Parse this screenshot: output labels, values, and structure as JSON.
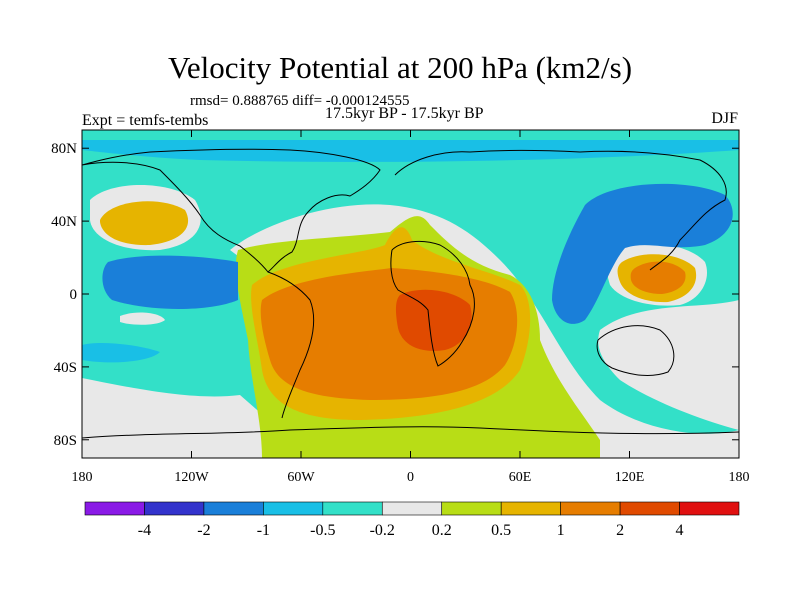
{
  "chart_data": {
    "type": "heatmap",
    "title": "Velocity Potential at 200 hPa (km2/s)",
    "stats_line": "rmsd= 0.888765 diff= -0.000124555",
    "subtitle": "17.5kyr BP - 17.5kyr BP",
    "left_label": "Expt = temfs-tembs",
    "right_label": "DJF",
    "x_axis": {
      "range": [
        -180,
        180
      ],
      "ticks": [
        -180,
        -120,
        -60,
        0,
        60,
        120,
        180
      ],
      "tick_labels": [
        "180",
        "120W",
        "60W",
        "0",
        "60E",
        "120E",
        "180"
      ]
    },
    "y_axis": {
      "range": [
        -90,
        90
      ],
      "ticks": [
        80,
        40,
        0,
        -40,
        -80
      ],
      "tick_labels": [
        "80N",
        "40N",
        "0",
        "40S",
        "80S"
      ]
    },
    "colorbar": {
      "levels": [
        -4,
        -2,
        -1,
        -0.5,
        -0.2,
        0.2,
        0.5,
        1,
        2,
        4
      ],
      "level_labels": [
        "-4",
        "-2",
        "-1",
        "-0.5",
        "-0.2",
        "0.2",
        "0.5",
        "1",
        "2",
        "4"
      ],
      "colors": [
        "#8a1ae6",
        "#3333cc",
        "#1a7fd9",
        "#19bfe6",
        "#33e0c8",
        "#e8e8e8",
        "#b8dd16",
        "#e6b400",
        "#e67d00",
        "#e04a00",
        "#e01010"
      ]
    },
    "features": [
      {
        "name": "North Pacific positive anomaly",
        "lon": -150,
        "lat": 45,
        "level": "0.5 to 1"
      },
      {
        "name": "Tropical Atlantic / South America positive region",
        "lon": -20,
        "lat": -15,
        "level": "1 to 2"
      },
      {
        "name": "South Atlantic / West Africa maximum",
        "lon": 5,
        "lat": -15,
        "level": "2 to 4"
      },
      {
        "name": "Western Pacific positive anomaly",
        "lon": 140,
        "lat": 15,
        "level": "1 to 2"
      },
      {
        "name": "Asian negative anomaly",
        "lon": 110,
        "lat": 45,
        "level": "-1 to -0.5"
      },
      {
        "name": "Eastern Pacific negative anomaly",
        "lon": -120,
        "lat": 10,
        "level": "-1 to -0.5"
      }
    ]
  }
}
